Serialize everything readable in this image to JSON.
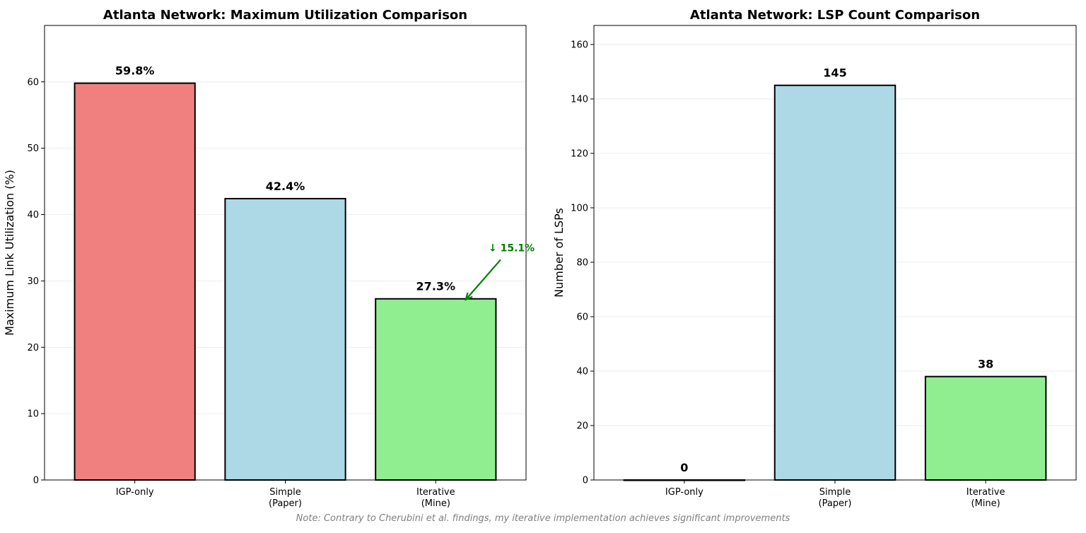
{
  "chart_data": [
    {
      "type": "bar",
      "title": "Atlanta Network: Maximum Utilization Comparison",
      "xlabel": "",
      "ylabel": "Maximum Link Utilization (%)",
      "categories": [
        [
          "IGP-only"
        ],
        [
          "Simple",
          "(Paper)"
        ],
        [
          "Iterative",
          "(Mine)"
        ]
      ],
      "values": [
        59.8,
        42.4,
        27.3
      ],
      "value_labels": [
        "59.8%",
        "42.4%",
        "27.3%"
      ],
      "colors": [
        "#f08080",
        "#add8e6",
        "#90ee90"
      ],
      "ylim": [
        0,
        68.5
      ],
      "yticks": [
        0,
        10,
        20,
        30,
        40,
        50,
        60
      ],
      "grid": "y",
      "annotation": {
        "text": "↓ 15.1%",
        "color": "#008000",
        "points_to_category": 2,
        "points_to_value": 27.3,
        "text_value": 35
      }
    },
    {
      "type": "bar",
      "title": "Atlanta Network: LSP Count Comparison",
      "xlabel": "",
      "ylabel": "Number of LSPs",
      "categories": [
        [
          "IGP-only"
        ],
        [
          "Simple",
          "(Paper)"
        ],
        [
          "Iterative",
          "(Mine)"
        ]
      ],
      "values": [
        0,
        145,
        38
      ],
      "value_labels": [
        "0",
        "145",
        "38"
      ],
      "colors": [
        "#f08080",
        "#add8e6",
        "#90ee90"
      ],
      "ylim": [
        0,
        167
      ],
      "yticks": [
        0,
        20,
        40,
        60,
        80,
        100,
        120,
        140,
        160
      ],
      "grid": "y"
    }
  ],
  "footnote": "Note: Contrary to Cherubini et al. findings, my iterative implementation achieves significant improvements"
}
